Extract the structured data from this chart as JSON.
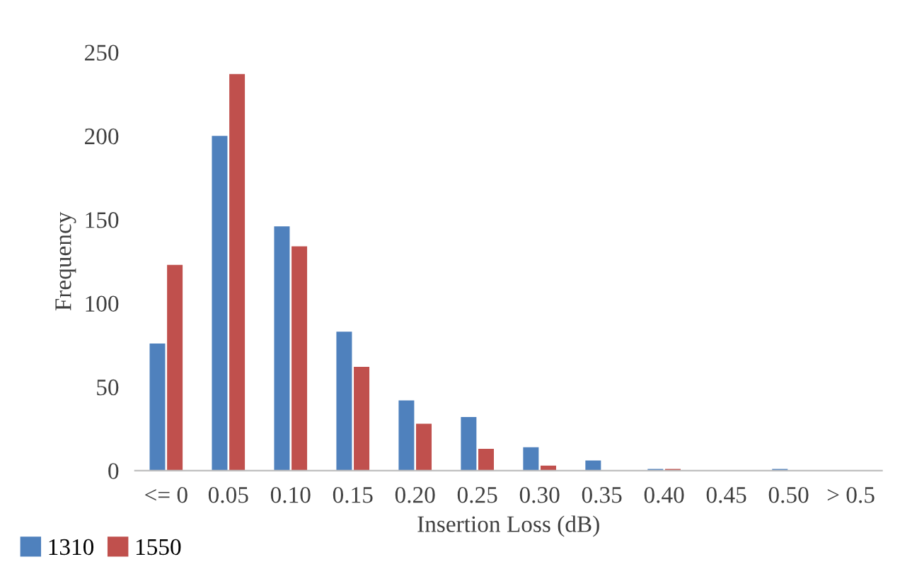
{
  "chart_data": {
    "type": "bar",
    "xlabel": "Insertion Loss (dB)",
    "ylabel": "Frequency",
    "categories": [
      "<= 0",
      "0.05",
      "0.10",
      "0.15",
      "0.20",
      "0.25",
      "0.30",
      "0.35",
      "0.40",
      "0.45",
      "0.50",
      "> 0.5"
    ],
    "series": [
      {
        "name": "1310",
        "color": "#4f81bd",
        "values": [
          76,
          200,
          146,
          83,
          42,
          32,
          14,
          6,
          1,
          0,
          1,
          0
        ]
      },
      {
        "name": "1550",
        "color": "#c0504d",
        "values": [
          123,
          237,
          134,
          62,
          28,
          13,
          3,
          0,
          1,
          0,
          0,
          0
        ]
      }
    ],
    "ylim": [
      0,
      250
    ],
    "yticks": [
      0,
      50,
      100,
      150,
      200,
      250
    ],
    "grid": false,
    "legend": "bottom left"
  }
}
